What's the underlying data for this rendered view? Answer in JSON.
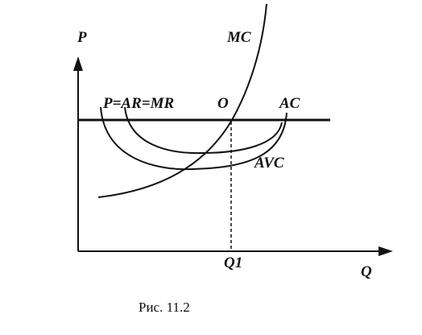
{
  "axes": {
    "y_label": "P",
    "x_label": "Q"
  },
  "curves": [
    {
      "label": "MC"
    },
    {
      "label": "AC"
    },
    {
      "label": "AVC"
    },
    {
      "label": "P=AR=MR"
    }
  ],
  "points": [
    {
      "label": "O"
    },
    {
      "label": "Q1"
    }
  ],
  "caption": "Рис. 11.2"
}
